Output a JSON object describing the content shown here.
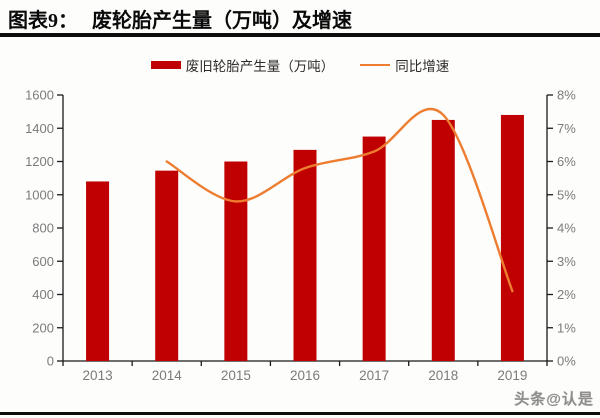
{
  "header": {
    "fig_label": "图表9：",
    "title": "废轮胎产生量（万吨）及增速"
  },
  "legend": [
    {
      "type": "bar",
      "color": "#c00000",
      "label": "废旧轮胎产生量（万吨）"
    },
    {
      "type": "line",
      "color": "#ed7d31",
      "label": "同比增速"
    }
  ],
  "watermark": "头条@认是",
  "colors": {
    "bar": "#c00000",
    "line": "#ed7d31",
    "axis": "#1a1a1a",
    "tick_label": "#7b7b7b",
    "rule": "#0d0d0d"
  },
  "chart_data": {
    "type": "bar",
    "subtype": "combo-bar-line",
    "title": "废轮胎产生量（万吨）及增速",
    "categories": [
      "2013",
      "2014",
      "2015",
      "2016",
      "2017",
      "2018",
      "2019"
    ],
    "series": [
      {
        "name": "废旧轮胎产生量（万吨）",
        "type": "bar",
        "axis": "left",
        "color": "#c00000",
        "values": [
          1080,
          1145,
          1200,
          1270,
          1350,
          1450,
          1480
        ]
      },
      {
        "name": "同比增速",
        "type": "line",
        "axis": "right",
        "color": "#ed7d31",
        "unit": "%",
        "values": [
          null,
          6.0,
          4.8,
          5.8,
          6.3,
          7.4,
          2.1
        ]
      }
    ],
    "left_axis": {
      "min": 0,
      "max": 1600,
      "step": 200,
      "suffix": ""
    },
    "right_axis": {
      "min": 0,
      "max": 8,
      "step": 1,
      "suffix": "%"
    },
    "grid": false,
    "legend_position": "top",
    "xlabel": "",
    "ylabel_left": "万吨",
    "ylabel_right": "%"
  }
}
